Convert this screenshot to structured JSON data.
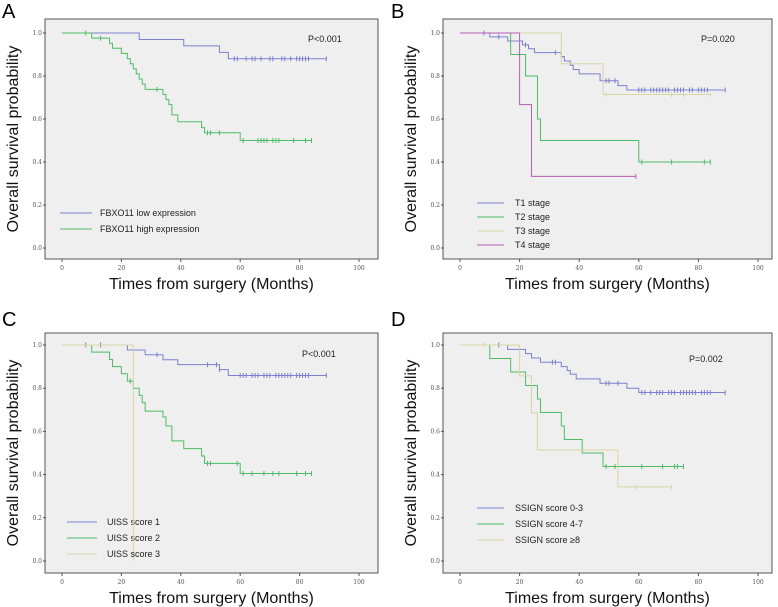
{
  "chart_data": [
    {
      "type": "line",
      "subtype": "kaplan-meier",
      "panel_label": "A",
      "xlabel": "Times from surgery (Months)",
      "ylabel": "Overall survival probability",
      "xlim": [
        0,
        100
      ],
      "ylim": [
        0,
        1
      ],
      "xticks": [
        "0",
        "20",
        "40",
        "60",
        "80",
        "100"
      ],
      "yticks": [
        "0.0",
        "0.2",
        "0.4",
        "0.6",
        "0.8",
        "1.0"
      ],
      "p_value": "P<0.001",
      "grid": false,
      "legend_position": "bottom-left",
      "series": [
        {
          "name": "FBXO11 low expression",
          "color": "#7b80cf",
          "steps": [
            [
              0,
              1.0
            ],
            [
              26,
              0.97
            ],
            [
              41,
              0.94
            ],
            [
              53,
              0.91
            ],
            [
              56,
              0.88
            ],
            [
              89,
              0.88
            ]
          ],
          "censored": [
            58,
            59,
            62,
            64,
            65,
            67,
            70,
            71,
            74,
            75,
            77,
            79,
            80,
            81,
            82,
            83,
            89
          ]
        },
        {
          "name": "FBXO11  high expression",
          "color": "#4fbb66",
          "steps": [
            [
              0,
              1.0
            ],
            [
              10,
              0.976
            ],
            [
              16,
              0.952
            ],
            [
              17,
              0.929
            ],
            [
              20,
              0.905
            ],
            [
              22,
              0.881
            ],
            [
              23,
              0.857
            ],
            [
              24,
              0.833
            ],
            [
              25,
              0.81
            ],
            [
              26,
              0.786
            ],
            [
              27,
              0.762
            ],
            [
              28,
              0.738
            ],
            [
              34,
              0.714
            ],
            [
              35,
              0.69
            ],
            [
              36,
              0.667
            ],
            [
              37,
              0.619
            ],
            [
              39,
              0.587
            ],
            [
              47,
              0.56
            ],
            [
              48,
              0.536
            ],
            [
              60,
              0.5
            ],
            [
              84,
              0.5
            ]
          ],
          "censored": [
            8,
            13,
            32,
            49,
            50,
            53,
            61,
            66,
            67,
            68,
            69,
            71,
            72,
            73,
            78,
            82,
            84
          ]
        }
      ]
    },
    {
      "type": "line",
      "subtype": "kaplan-meier",
      "panel_label": "B",
      "xlabel": "Times from surgery (Months)",
      "ylabel": "Overall survival probability",
      "xlim": [
        0,
        100
      ],
      "ylim": [
        0,
        1
      ],
      "xticks": [
        "0",
        "20",
        "40",
        "60",
        "80",
        "100"
      ],
      "yticks": [
        "0.0",
        "0.2",
        "0.4",
        "0.6",
        "0.8",
        "1.0"
      ],
      "p_value": "P=0.020",
      "grid": false,
      "legend_position": "bottom-left",
      "series": [
        {
          "name": "T1 stage",
          "color": "#7b80cf",
          "steps": [
            [
              0,
              1.0
            ],
            [
              10,
              0.982
            ],
            [
              16,
              0.963
            ],
            [
              21,
              0.945
            ],
            [
              23,
              0.927
            ],
            [
              25,
              0.909
            ],
            [
              34,
              0.89
            ],
            [
              35,
              0.87
            ],
            [
              37,
              0.85
            ],
            [
              38,
              0.83
            ],
            [
              40,
              0.81
            ],
            [
              47,
              0.778
            ],
            [
              53,
              0.755
            ],
            [
              56,
              0.735
            ],
            [
              89,
              0.735
            ]
          ],
          "censored": [
            8,
            13,
            22,
            32,
            49,
            50,
            52,
            60,
            61,
            62,
            64,
            65,
            66,
            67,
            68,
            69,
            70,
            72,
            73,
            74,
            75,
            77,
            78,
            80,
            81,
            82,
            83,
            89
          ]
        },
        {
          "name": "T2 stage",
          "color": "#4fbb66",
          "steps": [
            [
              0,
              1.0
            ],
            [
              17,
              0.9
            ],
            [
              22,
              0.8
            ],
            [
              26,
              0.6
            ],
            [
              27,
              0.5
            ],
            [
              60,
              0.4
            ],
            [
              84,
              0.4
            ]
          ],
          "censored": [
            61,
            71,
            82,
            84
          ]
        },
        {
          "name": "T3 stage",
          "color": "#d9d5a3",
          "steps": [
            [
              0,
              1.0
            ],
            [
              34,
              0.857
            ],
            [
              48,
              0.714
            ],
            [
              84,
              0.714
            ]
          ],
          "censored": [
            49,
            71,
            75,
            84
          ]
        },
        {
          "name": "T4 stage",
          "color": "#b75bb4",
          "steps": [
            [
              0,
              1.0
            ],
            [
              20,
              0.667
            ],
            [
              24,
              0.333
            ],
            [
              59,
              0.333
            ]
          ],
          "censored": [
            59
          ]
        }
      ]
    },
    {
      "type": "line",
      "subtype": "kaplan-meier",
      "panel_label": "C",
      "xlabel": "Times from surgery (Months)",
      "ylabel": "Overall survival probability",
      "xlim": [
        0,
        100
      ],
      "ylim": [
        0,
        1
      ],
      "xticks": [
        "0",
        "20",
        "40",
        "60",
        "80",
        "100"
      ],
      "yticks": [
        "0.0",
        "0.2",
        "0.4",
        "0.6",
        "0.8",
        "1.0"
      ],
      "p_value": "P<0.001",
      "grid": false,
      "legend_position": "bottom-left",
      "series": [
        {
          "name": "UISS score 1",
          "color": "#7b80cf",
          "steps": [
            [
              0,
              1.0
            ],
            [
              22,
              0.977
            ],
            [
              28,
              0.955
            ],
            [
              34,
              0.932
            ],
            [
              39,
              0.909
            ],
            [
              53,
              0.886
            ],
            [
              56,
              0.859
            ],
            [
              89,
              0.859
            ]
          ],
          "censored": [
            8,
            13,
            32,
            49,
            52,
            53,
            60,
            61,
            62,
            64,
            65,
            66,
            68,
            69,
            70,
            72,
            73,
            74,
            75,
            76,
            77,
            79,
            80,
            81,
            82,
            83,
            89
          ]
        },
        {
          "name": "UISS score 2",
          "color": "#4fbb66",
          "steps": [
            [
              0,
              1.0
            ],
            [
              10,
              0.967
            ],
            [
              16,
              0.933
            ],
            [
              17,
              0.9
            ],
            [
              20,
              0.867
            ],
            [
              22,
              0.833
            ],
            [
              24,
              0.8
            ],
            [
              26,
              0.767
            ],
            [
              27,
              0.733
            ],
            [
              28,
              0.694
            ],
            [
              34,
              0.667
            ],
            [
              35,
              0.625
            ],
            [
              37,
              0.556
            ],
            [
              41,
              0.52
            ],
            [
              47,
              0.486
            ],
            [
              48,
              0.452
            ],
            [
              60,
              0.405
            ],
            [
              84,
              0.405
            ]
          ],
          "censored": [
            23,
            49,
            50,
            59,
            61,
            64,
            68,
            71,
            73,
            79,
            82,
            84
          ]
        },
        {
          "name": "UISS score 3",
          "color": "#d9d5a3",
          "steps": [
            [
              0,
              1.0
            ],
            [
              24,
              0.0
            ]
          ],
          "censored": []
        }
      ]
    },
    {
      "type": "line",
      "subtype": "kaplan-meier",
      "panel_label": "D",
      "xlabel": "Times from surgery (Months)",
      "ylabel": "Overall survival probability",
      "xlim": [
        0,
        100
      ],
      "ylim": [
        0,
        1
      ],
      "xticks": [
        "0",
        "20",
        "40",
        "60",
        "80",
        "100"
      ],
      "yticks": [
        "0.0",
        "0.2",
        "0.4",
        "0.6",
        "0.8",
        "1.0"
      ],
      "p_value": "P=0.002",
      "grid": false,
      "legend_position": "bottom-left",
      "series": [
        {
          "name": "SSIGN score 0-3",
          "color": "#7b80cf",
          "steps": [
            [
              0,
              1.0
            ],
            [
              16,
              0.98
            ],
            [
              22,
              0.96
            ],
            [
              24,
              0.94
            ],
            [
              27,
              0.92
            ],
            [
              34,
              0.9
            ],
            [
              36,
              0.882
            ],
            [
              37,
              0.865
            ],
            [
              39,
              0.843
            ],
            [
              47,
              0.823
            ],
            [
              56,
              0.8
            ],
            [
              60,
              0.78
            ],
            [
              89,
              0.78
            ]
          ],
          "censored": [
            13,
            31,
            32,
            49,
            50,
            53,
            61,
            62,
            64,
            66,
            67,
            68,
            70,
            71,
            72,
            74,
            75,
            76,
            77,
            78,
            79,
            81,
            82,
            83,
            84,
            89
          ]
        },
        {
          "name": "SSIGN score 4-7",
          "color": "#4fbb66",
          "steps": [
            [
              0,
              1.0
            ],
            [
              10,
              0.9375
            ],
            [
              17,
              0.875
            ],
            [
              22,
              0.8125
            ],
            [
              26,
              0.75
            ],
            [
              27,
              0.6875
            ],
            [
              34,
              0.625
            ],
            [
              35,
              0.5625
            ],
            [
              41,
              0.5
            ],
            [
              48,
              0.4375
            ],
            [
              75,
              0.4375
            ]
          ],
          "censored": [
            49,
            52,
            61,
            68,
            72,
            73,
            75
          ]
        },
        {
          "name": "SSIGN score ≥8",
          "color": "#d9d5a3",
          "steps": [
            [
              0,
              1.0
            ],
            [
              20,
              0.857
            ],
            [
              24,
              0.686
            ],
            [
              26,
              0.514
            ],
            [
              53,
              0.343
            ],
            [
              71,
              0.343
            ]
          ],
          "censored": [
            8,
            59,
            71
          ]
        }
      ]
    }
  ]
}
